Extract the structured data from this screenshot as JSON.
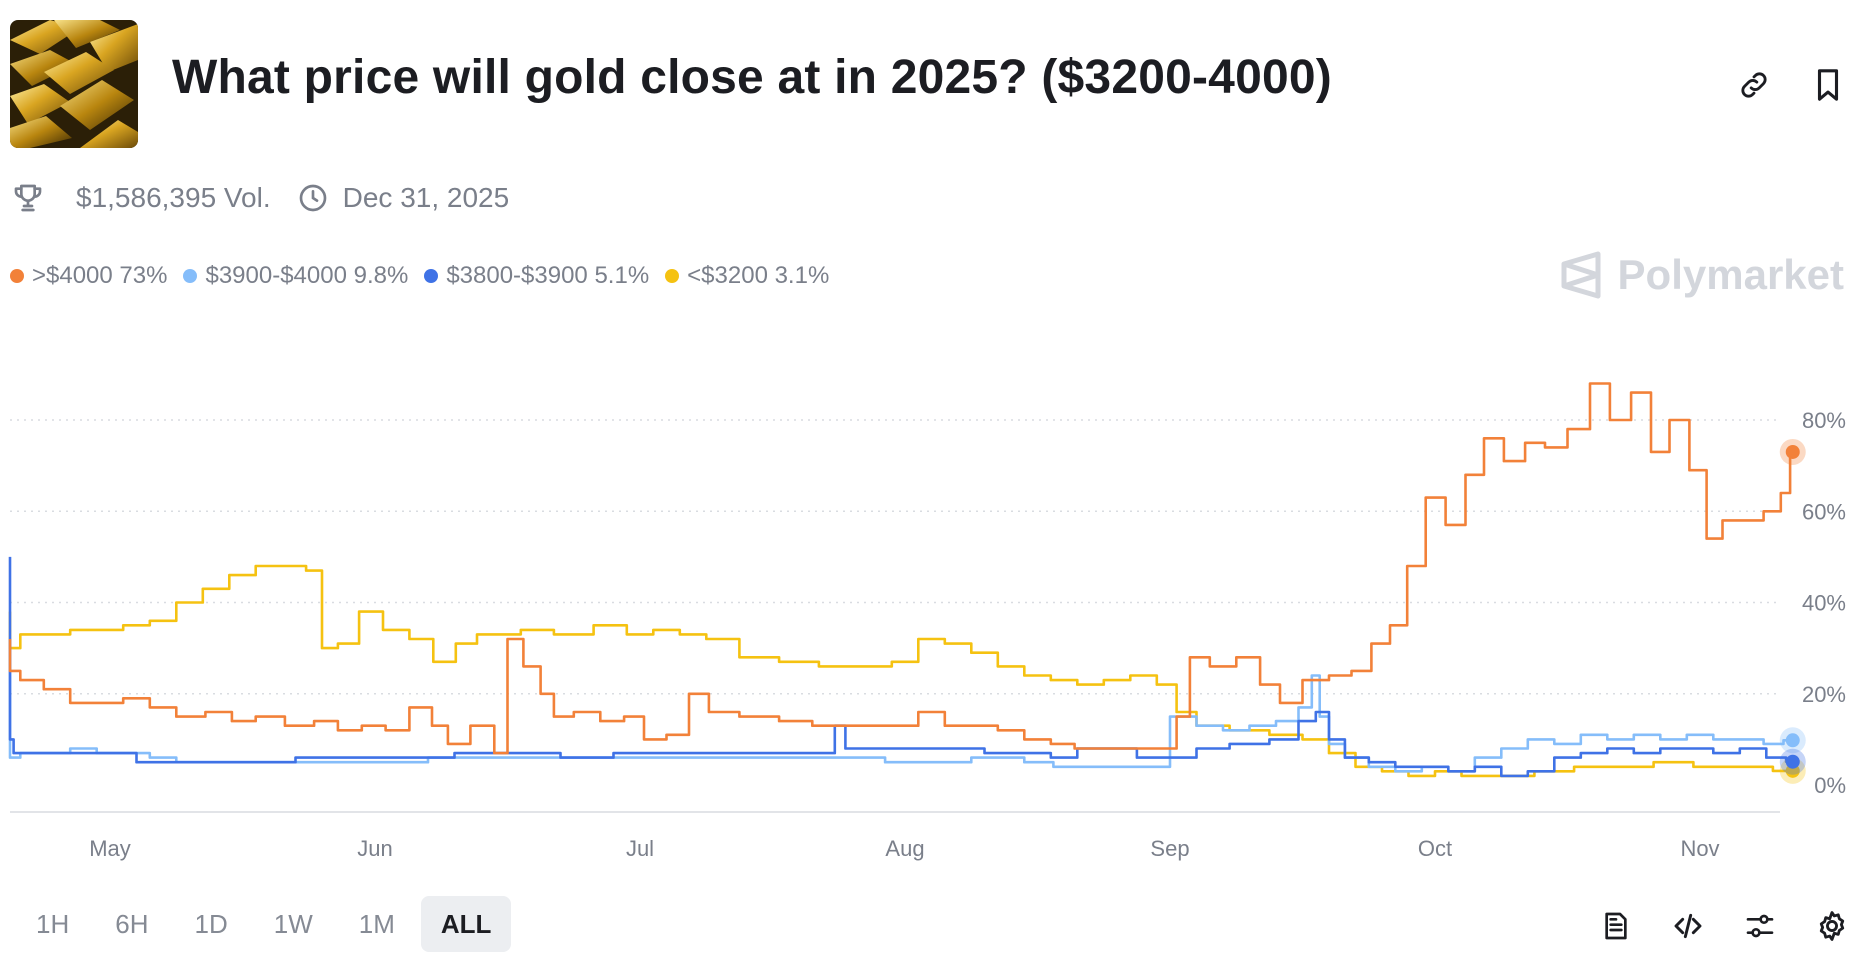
{
  "header": {
    "title": "What price will gold close at in 2025? ($3200-4000)",
    "thumbnail_icon": "gold-bars-image",
    "link_icon": "link-icon",
    "bookmark_icon": "bookmark-icon"
  },
  "meta": {
    "volume": "$1,586,395 Vol.",
    "end_date": "Dec 31, 2025"
  },
  "brand": {
    "name": "Polymarket"
  },
  "legend": [
    {
      "label": ">$4000 73%",
      "color": "#f28139"
    },
    {
      "label": "$3900-$4000 9.8%",
      "color": "#85bdfa"
    },
    {
      "label": "$3800-$3900 5.1%",
      "color": "#3f72e6"
    },
    {
      "label": "<$3200 3.1%",
      "color": "#f5c211"
    }
  ],
  "chart_data": {
    "type": "line",
    "x_ticks": [
      "May",
      "Jun",
      "Jul",
      "Aug",
      "Sep",
      "Oct",
      "Nov"
    ],
    "y_ticks": [
      "80%",
      "60%",
      "40%",
      "20%",
      "0%"
    ],
    "ylim": [
      0,
      90
    ],
    "grid": "horizontal-dotted",
    "x_range_months": [
      3.55,
      10.35
    ],
    "series": [
      {
        "name": ">$4000",
        "color": "#f28139",
        "points": [
          [
            3.55,
            32
          ],
          [
            3.62,
            25
          ],
          [
            3.7,
            23
          ],
          [
            3.8,
            21
          ],
          [
            3.9,
            18
          ],
          [
            4.0,
            18
          ],
          [
            4.1,
            19
          ],
          [
            4.2,
            17
          ],
          [
            4.3,
            15
          ],
          [
            4.42,
            16
          ],
          [
            4.5,
            14
          ],
          [
            4.6,
            15
          ],
          [
            4.72,
            13
          ],
          [
            4.82,
            14
          ],
          [
            4.9,
            12
          ],
          [
            5.0,
            13
          ],
          [
            5.08,
            12
          ],
          [
            5.18,
            17
          ],
          [
            5.25,
            13
          ],
          [
            5.3,
            9
          ],
          [
            5.42,
            13
          ],
          [
            5.48,
            7
          ],
          [
            5.52,
            32
          ],
          [
            5.6,
            26
          ],
          [
            5.65,
            20
          ],
          [
            5.7,
            15
          ],
          [
            5.8,
            16
          ],
          [
            5.9,
            14
          ],
          [
            5.98,
            15
          ],
          [
            6.05,
            10
          ],
          [
            6.15,
            11
          ],
          [
            6.22,
            20
          ],
          [
            6.3,
            16
          ],
          [
            6.45,
            15
          ],
          [
            6.6,
            14
          ],
          [
            6.7,
            13
          ],
          [
            6.85,
            13
          ],
          [
            7.0,
            13
          ],
          [
            7.1,
            16
          ],
          [
            7.2,
            13
          ],
          [
            7.3,
            13
          ],
          [
            7.4,
            12
          ],
          [
            7.5,
            10
          ],
          [
            7.6,
            9
          ],
          [
            7.68,
            8
          ],
          [
            7.8,
            8
          ],
          [
            7.9,
            8
          ],
          [
            8.0,
            8
          ],
          [
            8.05,
            15
          ],
          [
            8.1,
            28
          ],
          [
            8.2,
            26
          ],
          [
            8.3,
            28
          ],
          [
            8.38,
            22
          ],
          [
            8.45,
            18
          ],
          [
            8.55,
            23
          ],
          [
            8.65,
            24
          ],
          [
            8.72,
            25
          ],
          [
            8.8,
            31
          ],
          [
            8.86,
            35
          ],
          [
            8.93,
            48
          ],
          [
            9.0,
            63
          ],
          [
            9.08,
            57
          ],
          [
            9.15,
            68
          ],
          [
            9.22,
            76
          ],
          [
            9.3,
            71
          ],
          [
            9.38,
            75
          ],
          [
            9.45,
            74
          ],
          [
            9.55,
            78
          ],
          [
            9.62,
            88
          ],
          [
            9.7,
            80
          ],
          [
            9.78,
            86
          ],
          [
            9.85,
            73
          ],
          [
            9.92,
            80
          ],
          [
            10.0,
            69
          ],
          [
            10.05,
            54
          ],
          [
            10.12,
            58
          ],
          [
            10.2,
            58
          ],
          [
            10.28,
            60
          ],
          [
            10.33,
            64
          ],
          [
            10.35,
            73
          ]
        ]
      },
      {
        "name": "$3900-$4000",
        "color": "#85bdfa",
        "points": [
          [
            3.55,
            32
          ],
          [
            3.58,
            12
          ],
          [
            3.62,
            6
          ],
          [
            3.7,
            7
          ],
          [
            3.8,
            7
          ],
          [
            3.9,
            8
          ],
          [
            4.0,
            7
          ],
          [
            4.1,
            7
          ],
          [
            4.2,
            6
          ],
          [
            4.3,
            5
          ],
          [
            4.5,
            5
          ],
          [
            4.7,
            5
          ],
          [
            4.9,
            5
          ],
          [
            5.1,
            5
          ],
          [
            5.3,
            6
          ],
          [
            5.5,
            6
          ],
          [
            5.7,
            6
          ],
          [
            5.9,
            6
          ],
          [
            6.1,
            6
          ],
          [
            6.3,
            6
          ],
          [
            6.5,
            6
          ],
          [
            6.7,
            6
          ],
          [
            6.85,
            6
          ],
          [
            7.0,
            5
          ],
          [
            7.1,
            5
          ],
          [
            7.2,
            5
          ],
          [
            7.3,
            6
          ],
          [
            7.4,
            6
          ],
          [
            7.5,
            5
          ],
          [
            7.62,
            4
          ],
          [
            7.8,
            4
          ],
          [
            7.95,
            4
          ],
          [
            8.05,
            15
          ],
          [
            8.15,
            13
          ],
          [
            8.25,
            12
          ],
          [
            8.35,
            13
          ],
          [
            8.45,
            14
          ],
          [
            8.52,
            17
          ],
          [
            8.55,
            24
          ],
          [
            8.58,
            15
          ],
          [
            8.62,
            9
          ],
          [
            8.7,
            6
          ],
          [
            8.8,
            4
          ],
          [
            8.9,
            3
          ],
          [
            9.0,
            4
          ],
          [
            9.1,
            3
          ],
          [
            9.2,
            6
          ],
          [
            9.3,
            8
          ],
          [
            9.4,
            10
          ],
          [
            9.5,
            9
          ],
          [
            9.6,
            11
          ],
          [
            9.7,
            10
          ],
          [
            9.8,
            11
          ],
          [
            9.9,
            10
          ],
          [
            10.0,
            11
          ],
          [
            10.1,
            10
          ],
          [
            10.2,
            10
          ],
          [
            10.28,
            9
          ],
          [
            10.35,
            9.8
          ]
        ]
      },
      {
        "name": "$3800-$3900",
        "color": "#3f72e6",
        "points": [
          [
            3.55,
            50
          ],
          [
            3.57,
            15
          ],
          [
            3.6,
            10
          ],
          [
            3.65,
            7
          ],
          [
            3.8,
            7
          ],
          [
            4.0,
            7
          ],
          [
            4.2,
            5
          ],
          [
            4.4,
            5
          ],
          [
            4.6,
            5
          ],
          [
            4.8,
            6
          ],
          [
            5.0,
            6
          ],
          [
            5.2,
            6
          ],
          [
            5.4,
            7
          ],
          [
            5.6,
            7
          ],
          [
            5.8,
            6
          ],
          [
            6.0,
            7
          ],
          [
            6.2,
            7
          ],
          [
            6.4,
            7
          ],
          [
            6.6,
            7
          ],
          [
            6.72,
            7
          ],
          [
            6.75,
            13
          ],
          [
            6.8,
            8
          ],
          [
            6.95,
            8
          ],
          [
            7.0,
            8
          ],
          [
            7.2,
            8
          ],
          [
            7.4,
            7
          ],
          [
            7.5,
            7
          ],
          [
            7.6,
            6
          ],
          [
            7.7,
            8
          ],
          [
            7.8,
            8
          ],
          [
            7.95,
            6
          ],
          [
            8.05,
            6
          ],
          [
            8.15,
            8
          ],
          [
            8.3,
            9
          ],
          [
            8.45,
            10
          ],
          [
            8.52,
            14
          ],
          [
            8.58,
            16
          ],
          [
            8.62,
            10
          ],
          [
            8.7,
            6
          ],
          [
            8.8,
            5
          ],
          [
            8.9,
            4
          ],
          [
            9.0,
            4
          ],
          [
            9.1,
            3
          ],
          [
            9.2,
            4
          ],
          [
            9.3,
            2
          ],
          [
            9.4,
            3
          ],
          [
            9.5,
            6
          ],
          [
            9.6,
            7
          ],
          [
            9.7,
            8
          ],
          [
            9.8,
            7
          ],
          [
            9.9,
            8
          ],
          [
            10.0,
            8
          ],
          [
            10.1,
            7
          ],
          [
            10.2,
            8
          ],
          [
            10.3,
            6
          ],
          [
            10.35,
            5.1
          ]
        ]
      },
      {
        "name": "<$3200",
        "color": "#f5c211",
        "points": [
          [
            3.55,
            38
          ],
          [
            3.62,
            30
          ],
          [
            3.7,
            33
          ],
          [
            3.8,
            33
          ],
          [
            3.9,
            34
          ],
          [
            4.0,
            34
          ],
          [
            4.1,
            35
          ],
          [
            4.2,
            36
          ],
          [
            4.3,
            40
          ],
          [
            4.4,
            43
          ],
          [
            4.5,
            46
          ],
          [
            4.6,
            48
          ],
          [
            4.7,
            48
          ],
          [
            4.78,
            47
          ],
          [
            4.82,
            30
          ],
          [
            4.9,
            31
          ],
          [
            4.98,
            38
          ],
          [
            5.08,
            34
          ],
          [
            5.18,
            32
          ],
          [
            5.26,
            27
          ],
          [
            5.35,
            31
          ],
          [
            5.42,
            33
          ],
          [
            5.5,
            33
          ],
          [
            5.6,
            34
          ],
          [
            5.75,
            33
          ],
          [
            5.9,
            35
          ],
          [
            6.0,
            33
          ],
          [
            6.1,
            34
          ],
          [
            6.2,
            33
          ],
          [
            6.3,
            32
          ],
          [
            6.45,
            28
          ],
          [
            6.6,
            27
          ],
          [
            6.75,
            26
          ],
          [
            6.9,
            26
          ],
          [
            7.0,
            27
          ],
          [
            7.1,
            32
          ],
          [
            7.2,
            31
          ],
          [
            7.3,
            29
          ],
          [
            7.4,
            26
          ],
          [
            7.5,
            24
          ],
          [
            7.6,
            23
          ],
          [
            7.7,
            22
          ],
          [
            7.8,
            23
          ],
          [
            7.9,
            24
          ],
          [
            8.0,
            22
          ],
          [
            8.05,
            16
          ],
          [
            8.15,
            13
          ],
          [
            8.3,
            12
          ],
          [
            8.45,
            11
          ],
          [
            8.55,
            10
          ],
          [
            8.65,
            7
          ],
          [
            8.75,
            4
          ],
          [
            8.85,
            3
          ],
          [
            8.95,
            2
          ],
          [
            9.05,
            3
          ],
          [
            9.15,
            2
          ],
          [
            9.3,
            2
          ],
          [
            9.45,
            3
          ],
          [
            9.6,
            4
          ],
          [
            9.75,
            4
          ],
          [
            9.9,
            5
          ],
          [
            10.05,
            4
          ],
          [
            10.2,
            4
          ],
          [
            10.35,
            3.1
          ]
        ]
      }
    ]
  },
  "range_buttons": [
    {
      "label": "1H",
      "active": false
    },
    {
      "label": "6H",
      "active": false
    },
    {
      "label": "1D",
      "active": false
    },
    {
      "label": "1W",
      "active": false
    },
    {
      "label": "1M",
      "active": false
    },
    {
      "label": "ALL",
      "active": true
    }
  ],
  "tools": [
    "document-icon",
    "code-icon",
    "filter-sliders-icon",
    "settings-icon"
  ]
}
